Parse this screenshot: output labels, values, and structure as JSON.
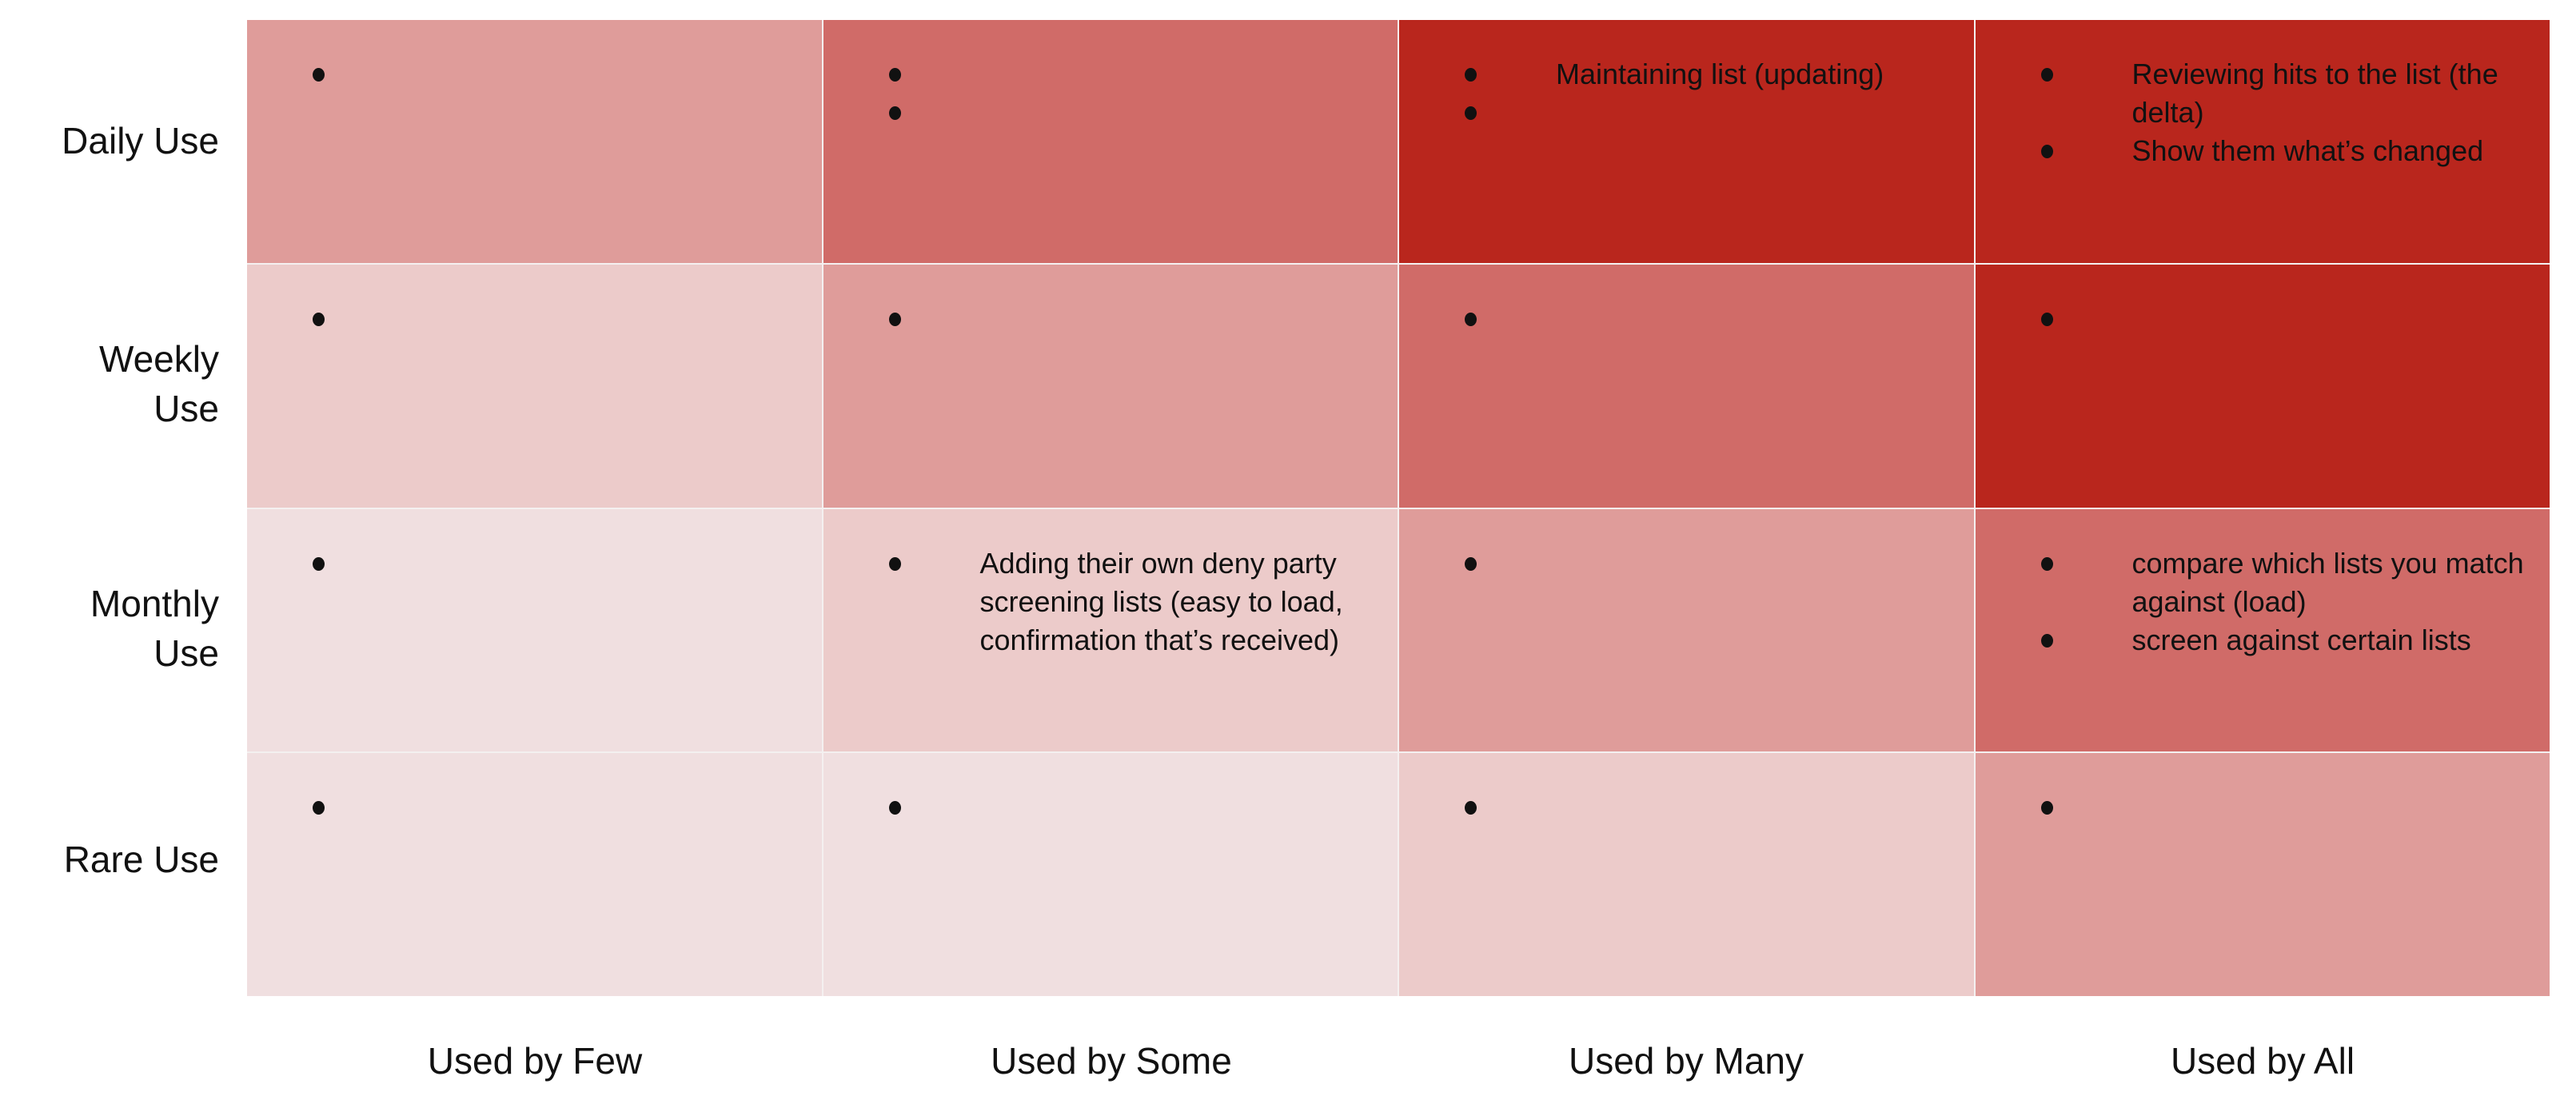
{
  "colors": {
    "level1": "#f0dfe0",
    "level2": "#eccbca",
    "level3": "#df9c9a",
    "level4": "#d06b68",
    "level5": "#b9261d"
  },
  "rows": [
    "Daily Use",
    "Weekly Use",
    "Monthly Use",
    "Rare Use"
  ],
  "columns": [
    "Used by Few",
    "Used by Some",
    "Used by Many",
    "Used by All"
  ],
  "cells": [
    [
      {
        "level": 3,
        "bullets": [
          ""
        ]
      },
      {
        "level": 4,
        "bullets": [
          "",
          ""
        ]
      },
      {
        "level": 5,
        "bullets": [
          "Maintaining list (updating)",
          ""
        ]
      },
      {
        "level": 5,
        "bullets": [
          "Reviewing hits to the list (the delta)",
          "Show them what’s changed"
        ]
      }
    ],
    [
      {
        "level": 2,
        "bullets": [
          ""
        ]
      },
      {
        "level": 3,
        "bullets": [
          ""
        ]
      },
      {
        "level": 4,
        "bullets": [
          ""
        ]
      },
      {
        "level": 5,
        "bullets": [
          ""
        ]
      }
    ],
    [
      {
        "level": 1,
        "bullets": [
          ""
        ]
      },
      {
        "level": 2,
        "bullets": [
          "Adding their own deny party screening lists (easy to load, confirmation that’s received)"
        ]
      },
      {
        "level": 3,
        "bullets": [
          ""
        ]
      },
      {
        "level": 4,
        "bullets": [
          "compare which lists you match against (load)",
          "screen against certain lists"
        ]
      }
    ],
    [
      {
        "level": 1,
        "bullets": [
          ""
        ]
      },
      {
        "level": 1,
        "bullets": [
          ""
        ]
      },
      {
        "level": 2,
        "bullets": [
          ""
        ]
      },
      {
        "level": 3,
        "bullets": [
          ""
        ]
      }
    ]
  ]
}
